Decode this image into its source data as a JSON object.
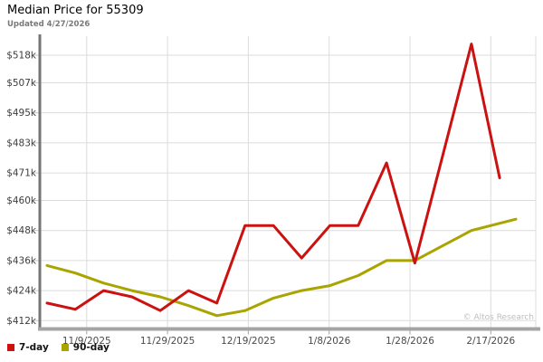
{
  "header": {
    "title": "Median Price for 55309",
    "subtitle": "Updated 4/27/2026"
  },
  "watermark": "© Altos Research",
  "legend": [
    {
      "label": "7-day",
      "color": "#cc1111"
    },
    {
      "label": "90-day",
      "color": "#a9a400"
    }
  ],
  "colors": {
    "series_7day": "#cc1111",
    "series_90day": "#a9a400",
    "gridline": "#dcdcdc",
    "axis_left": "#757575",
    "axis_bottom": "#a5a5a5",
    "tick": "#c8c8c8",
    "y_label_text": "#3c3c3c",
    "x_label_text": "#4a4a4a"
  },
  "chart_data": {
    "type": "line",
    "title": "Median Price for 55309",
    "subtitle": "Updated 4/27/2026",
    "grid": true,
    "legend_position": "bottom-left",
    "x_tick_labels": [
      "11/9/2025",
      "11/29/2025",
      "12/19/2025",
      "1/8/2026",
      "1/28/2026",
      "2/17/2026"
    ],
    "x_tick_days": [
      9.8,
      29.8,
      49.8,
      69.8,
      89.8,
      109.8
    ],
    "y_tick_labels": [
      "$412k",
      "$424k",
      "$436k",
      "$448k",
      "$460k",
      "$471k",
      "$483k",
      "$495k",
      "$507k",
      "$518k"
    ],
    "y_ticks_k": [
      412,
      424,
      436,
      448,
      460,
      471,
      483,
      495,
      507,
      518
    ],
    "ylim_k": [
      409,
      526
    ],
    "x_note": "points are weekly; x_days measured from first plotted point (~10/30/2025)",
    "series": [
      {
        "name": "7-day",
        "color": "#cc1111",
        "x_days": [
          0,
          7,
          14,
          21,
          28,
          35,
          42,
          49,
          56,
          63,
          70,
          77,
          84,
          91,
          98,
          105,
          112
        ],
        "values_k": [
          419,
          416.5,
          424,
          421.5,
          416,
          424,
          419,
          450,
          450,
          437,
          450,
          450,
          475,
          435,
          478.5,
          522.5,
          469
        ]
      },
      {
        "name": "90-day",
        "color": "#a9a400",
        "x_days": [
          0,
          7,
          14,
          21,
          28,
          35,
          42,
          49,
          56,
          63,
          70,
          77,
          84,
          91,
          98,
          105,
          116
        ],
        "values_k": [
          434,
          431,
          427,
          424,
          421.5,
          418,
          414,
          416,
          421,
          424,
          426,
          430,
          436,
          436,
          442,
          448,
          452.5
        ]
      }
    ]
  }
}
